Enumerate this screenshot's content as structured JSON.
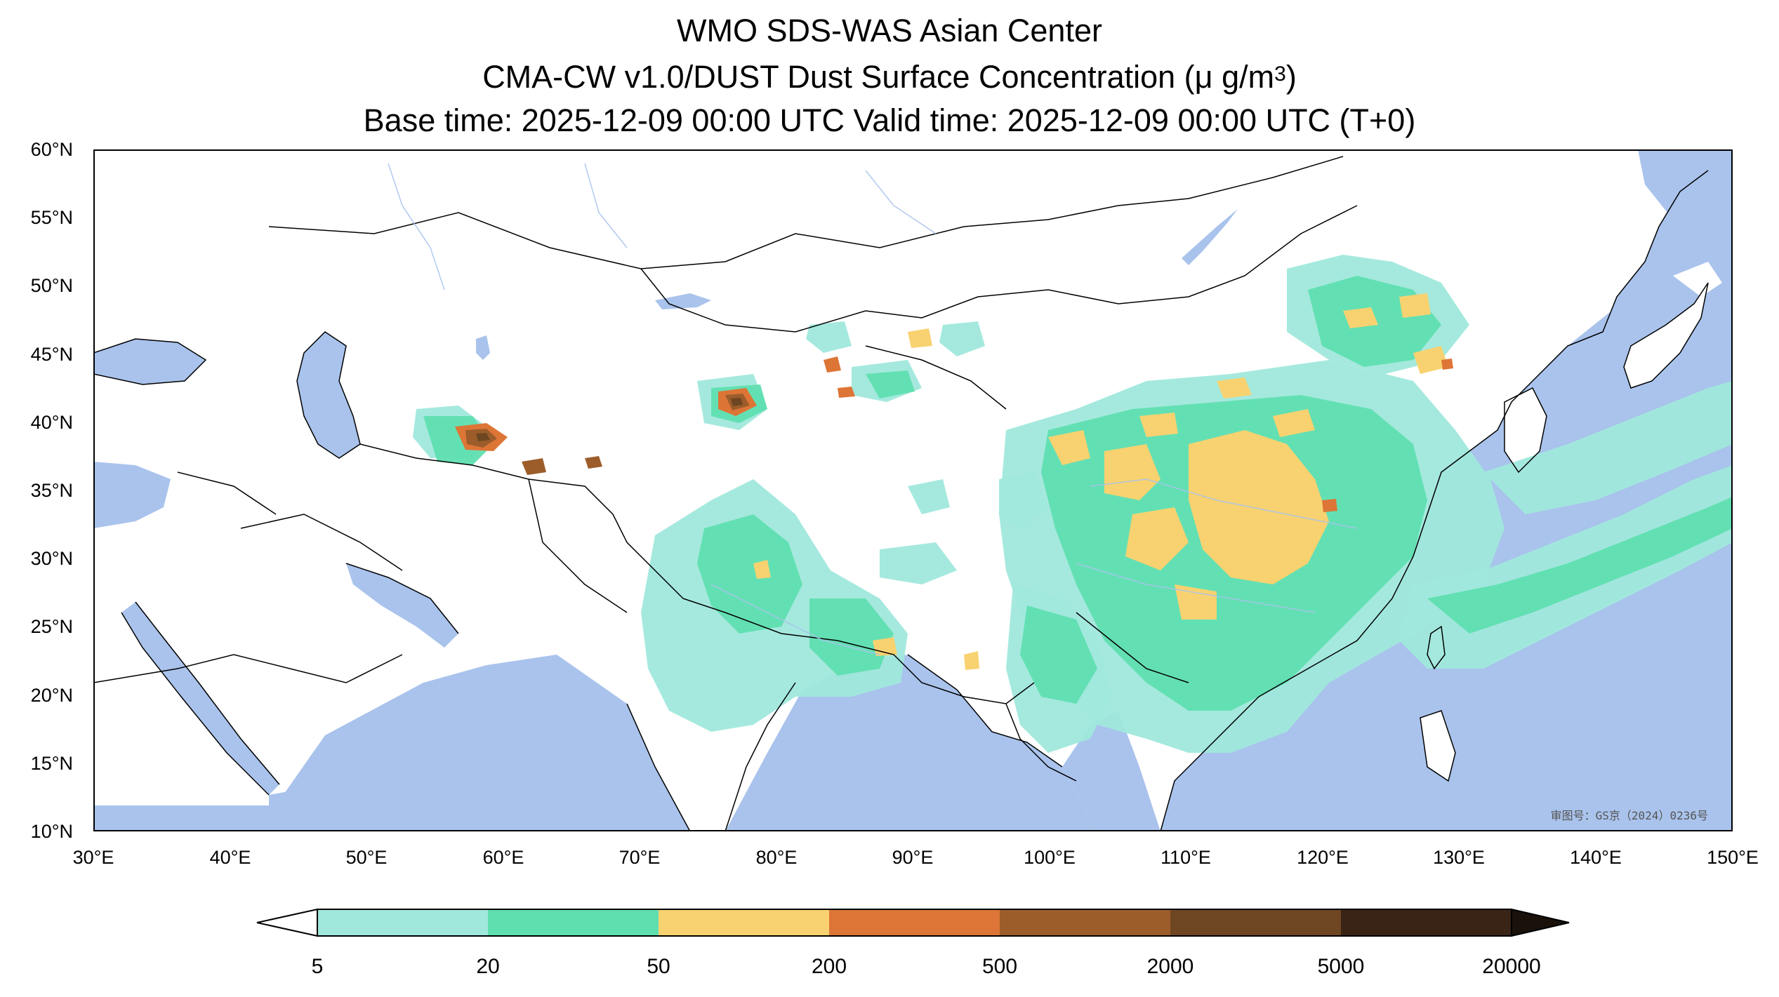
{
  "title": {
    "line1": "WMO SDS-WAS Asian Center",
    "line2_main": "CMA-CW v1.0/DUST Dust Surface Concentration (",
    "line2_unit": "μ g/m",
    "line2_sup": "3",
    "line2_end": ")",
    "line3": "Base time: 2025-12-09 00:00 UTC Valid time: 2025-12-09 00:00 UTC (T+0)"
  },
  "map": {
    "projection": "PlateCarree",
    "lon_range": [
      30,
      150
    ],
    "lat_range": [
      10,
      60
    ],
    "lat_labels": [
      "60°N",
      "55°N",
      "50°N",
      "45°N",
      "40°N",
      "35°N",
      "30°N",
      "25°N",
      "20°N",
      "15°N",
      "10°N"
    ],
    "lon_labels": [
      "30°E",
      "40°E",
      "50°E",
      "60°E",
      "70°E",
      "80°E",
      "90°E",
      "100°E",
      "110°E",
      "120°E",
      "130°E",
      "140°E",
      "150°E"
    ],
    "ocean_color": "#a9c3ec",
    "land_color": "#ffffff",
    "watermark": "审图号：GS京（2024）0236号"
  },
  "colorbar": {
    "ticks": [
      "5",
      "20",
      "50",
      "200",
      "500",
      "2000",
      "5000",
      "20000"
    ],
    "colors": [
      "#a0e8dc",
      "#5fdfb0",
      "#f8d270",
      "#dd7536",
      "#9c5d2a",
      "#6e4621",
      "#3a2416"
    ],
    "extend": "both"
  },
  "legend_values": {
    "levels": [
      5,
      20,
      50,
      200,
      500,
      2000,
      5000,
      20000
    ]
  }
}
